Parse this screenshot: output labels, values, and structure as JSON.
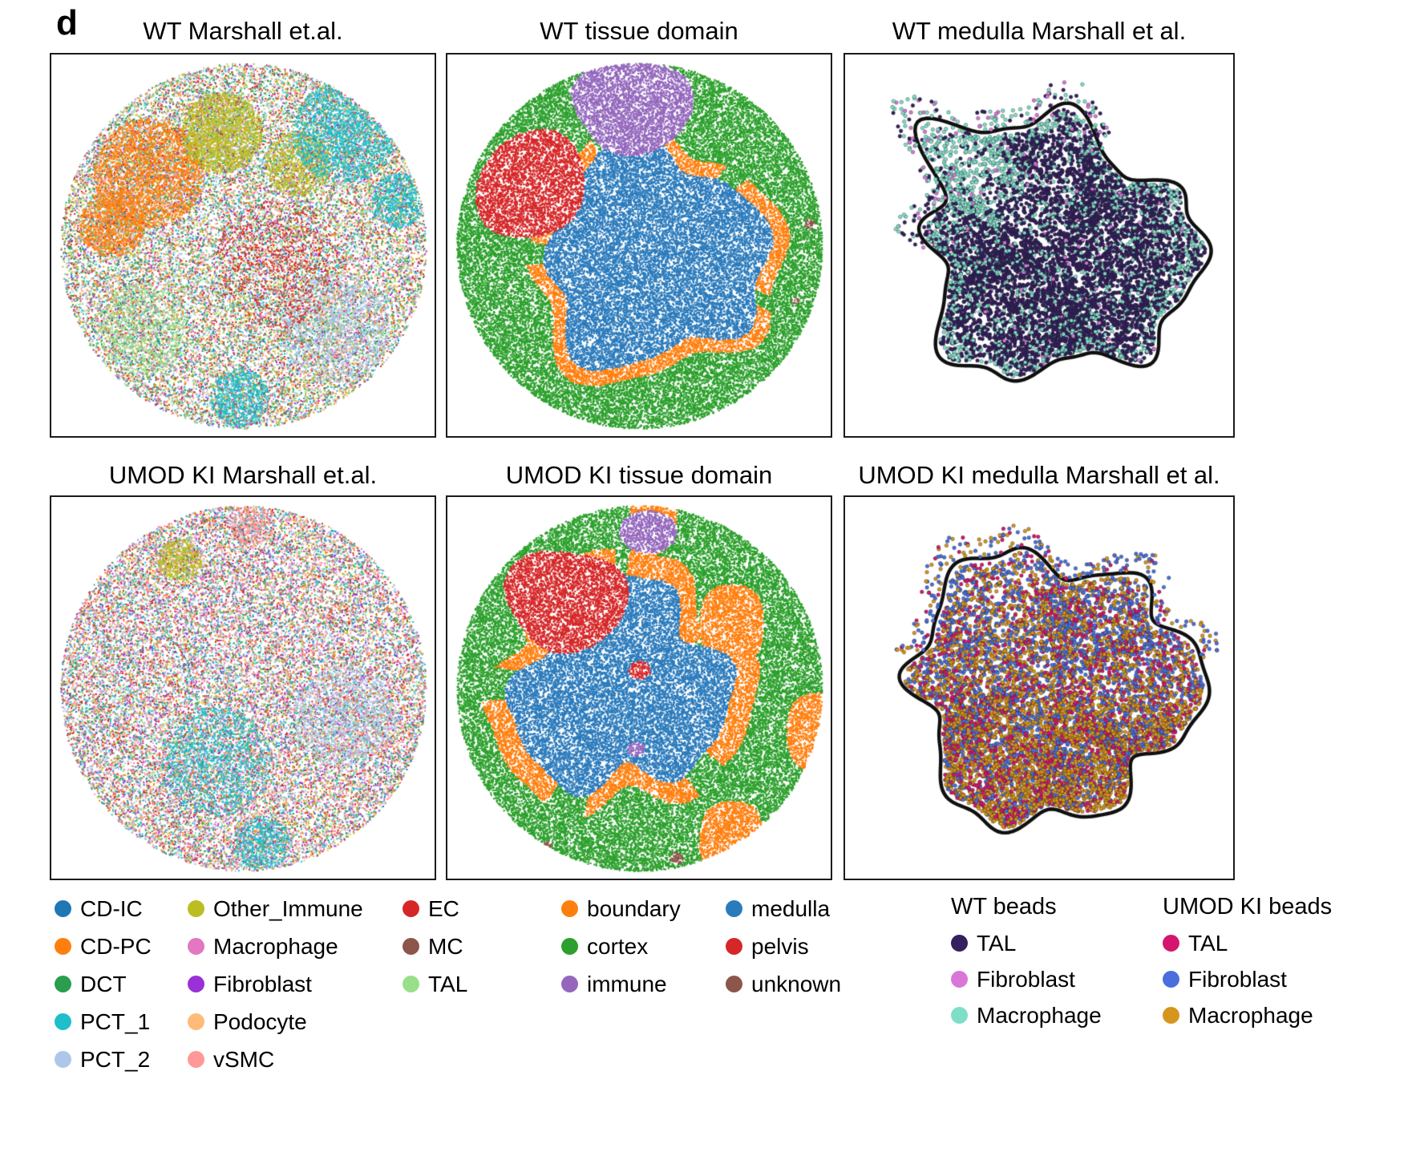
{
  "figure": {
    "label": "d"
  },
  "panels": [
    {
      "id": "wt-marshall",
      "title": "WT Marshall et.al."
    },
    {
      "id": "wt-domain",
      "title": "WT tissue domain"
    },
    {
      "id": "wt-medulla",
      "title": "WT medulla Marshall et al."
    },
    {
      "id": "ki-marshall",
      "title": "UMOD KI Marshall et.al."
    },
    {
      "id": "ki-domain",
      "title": "UMOD KI tissue domain"
    },
    {
      "id": "ki-medulla",
      "title": "UMOD KI medulla Marshall et al."
    }
  ],
  "legends": {
    "cell_types": {
      "columns": [
        [
          {
            "label": "CD-IC",
            "color": "#1f77b4"
          },
          {
            "label": "CD-PC",
            "color": "#ff7f0e"
          },
          {
            "label": "DCT",
            "color": "#2a9d4f"
          },
          {
            "label": "PCT_1",
            "color": "#1fbecb"
          },
          {
            "label": "PCT_2",
            "color": "#aec7e8"
          }
        ],
        [
          {
            "label": "Other_Immune",
            "color": "#bcbd22"
          },
          {
            "label": "Macrophage",
            "color": "#e377c2"
          },
          {
            "label": "Fibroblast",
            "color": "#9a30d8"
          },
          {
            "label": "Podocyte",
            "color": "#ffbb78"
          },
          {
            "label": "vSMC",
            "color": "#ff9896"
          }
        ],
        [
          {
            "label": "EC",
            "color": "#d62728"
          },
          {
            "label": "MC",
            "color": "#8c564b"
          },
          {
            "label": "TAL",
            "color": "#98df8a"
          }
        ]
      ]
    },
    "tissue_domains": {
      "columns": [
        [
          {
            "label": "boundary",
            "color": "#ff7f0e"
          },
          {
            "label": "cortex",
            "color": "#2ca02c"
          },
          {
            "label": "immune",
            "color": "#9467bd"
          }
        ],
        [
          {
            "label": "medulla",
            "color": "#2b7bbc"
          },
          {
            "label": "pelvis",
            "color": "#d62728"
          },
          {
            "label": "unknown",
            "color": "#8c564b"
          }
        ]
      ]
    },
    "wt_beads": {
      "title": "WT beads",
      "items": [
        {
          "label": "TAL",
          "color": "#33205f"
        },
        {
          "label": "Fibroblast",
          "color": "#d977d9"
        },
        {
          "label": "Macrophage",
          "color": "#7fdec8"
        }
      ]
    },
    "umod_ki_beads": {
      "title": "UMOD KI beads",
      "items": [
        {
          "label": "TAL",
          "color": "#d4166e"
        },
        {
          "label": "Fibroblast",
          "color": "#4a6fdc"
        },
        {
          "label": "Macrophage",
          "color": "#d6951c"
        }
      ]
    }
  },
  "chart_data": [
    {
      "type": "scatter",
      "panel": "WT Marshall et.al.",
      "description": "Circular spatial transcriptomics puck of WT kidney; each bead colored by mapped cell type (Marshall et al. reference). No axes or tick labels shown.",
      "categories": [
        "CD-IC",
        "CD-PC",
        "DCT",
        "PCT_1",
        "PCT_2",
        "Other_Immune",
        "Macrophage",
        "Fibroblast",
        "Podocyte",
        "vSMC",
        "EC",
        "MC",
        "TAL"
      ],
      "salient_features": [
        "CD-PC (orange) enriched upper-left",
        "Other_Immune (olive) patch top-center",
        "PCT_1 (teal) region upper-right and bottom-center",
        "PCT_2 / TAL / EC / DCT speckle throughout center"
      ]
    },
    {
      "type": "scatter",
      "panel": "WT tissue domain",
      "categories": [
        "boundary",
        "cortex",
        "immune",
        "medulla",
        "pelvis",
        "unknown"
      ],
      "approx_area_fractions": {
        "medulla": 0.44,
        "cortex": 0.36,
        "pelvis": 0.08,
        "immune": 0.07,
        "boundary": 0.05,
        "unknown": 0.002
      },
      "layout": [
        "medulla (blue) central mass",
        "cortex (green) outer ring",
        "pelvis (red) upper-left",
        "immune (purple) top",
        "boundary (orange) thin band between medulla and cortex"
      ]
    },
    {
      "type": "scatter",
      "panel": "WT medulla Marshall et al.",
      "series": [
        {
          "name": "TAL",
          "color": "#33205f",
          "approx_fraction": 0.8
        },
        {
          "name": "Macrophage",
          "color": "#7fdec8",
          "approx_fraction": 0.18
        },
        {
          "name": "Fibroblast",
          "color": "#d977d9",
          "approx_fraction": 0.02
        }
      ],
      "layout": "Beads plotted inside a black hand-drawn outline of the dissected medulla; Macrophage beads rim the edges and the upper-left arm."
    },
    {
      "type": "scatter",
      "panel": "UMOD KI Marshall et.al.",
      "categories": [
        "CD-IC",
        "CD-PC",
        "DCT",
        "PCT_1",
        "PCT_2",
        "Other_Immune",
        "Macrophage",
        "Fibroblast",
        "Podocyte",
        "vSMC",
        "EC",
        "MC",
        "TAL"
      ],
      "salient_features": [
        "More uniform colorful speckle than WT",
        "Macrophage (pink) and PCT_2 (light blue) prominent throughout",
        "PCT_1 (teal) patches at bottom and edges"
      ]
    },
    {
      "type": "scatter",
      "panel": "UMOD KI tissue domain",
      "categories": [
        "boundary",
        "cortex",
        "immune",
        "medulla",
        "pelvis",
        "unknown"
      ],
      "approx_area_fractions": {
        "medulla": 0.38,
        "cortex": 0.28,
        "boundary": 0.17,
        "pelvis": 0.09,
        "immune": 0.03,
        "unknown": 0.003
      },
      "layout": [
        "medulla (blue) center-left",
        "pelvis (red) upper-left plus small central spot",
        "boundary (orange) broad patchy ring, heaviest on right and bottom",
        "cortex (green) periphery",
        "immune (purple) small top patch"
      ]
    },
    {
      "type": "scatter",
      "panel": "UMOD KI medulla Marshall et al.",
      "series": [
        {
          "name": "TAL",
          "color": "#d4166e",
          "approx_fraction": 0.25
        },
        {
          "name": "Fibroblast",
          "color": "#4a6fdc",
          "approx_fraction": 0.2
        },
        {
          "name": "Macrophage",
          "color": "#d6951c",
          "approx_fraction": 0.55
        }
      ],
      "layout": "Beads inside black medulla outline; Fibroblast-rich sparse upper region, dense Macrophage (gold) lower mass."
    }
  ]
}
